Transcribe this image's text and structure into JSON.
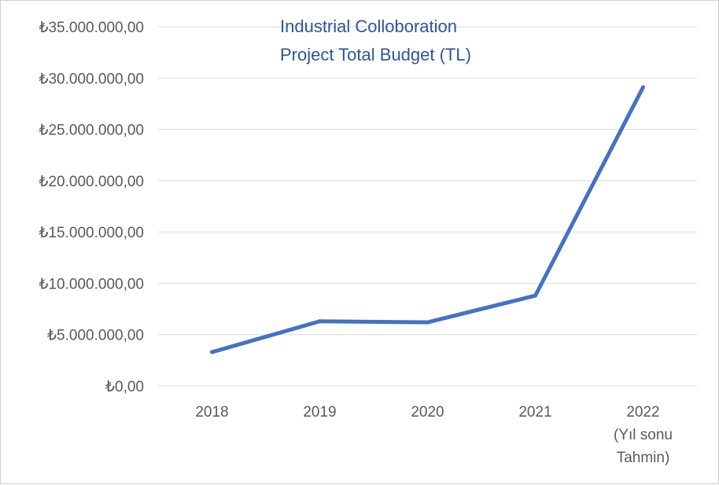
{
  "chart_data": {
    "type": "line",
    "title_lines": [
      "Industrial Colloboration",
      "Project Total Budget (TL)"
    ],
    "categories": [
      [
        "2018"
      ],
      [
        "2019"
      ],
      [
        "2020"
      ],
      [
        "2021"
      ],
      [
        "2022",
        "(Yıl sonu",
        "Tahmin)"
      ]
    ],
    "values": [
      3300000,
      6300000,
      6200000,
      8800000,
      29100000
    ],
    "y_tick_labels": [
      "₺0,00",
      "₺5.000.000,00",
      "₺10.000.000,00",
      "₺15.000.000,00",
      "₺20.000.000,00",
      "₺25.000.000,00",
      "₺30.000.000,00",
      "₺35.000.000,00"
    ],
    "ylim": [
      0,
      35000000
    ],
    "y_tick_step": 5000000,
    "grid": true,
    "legend": "none",
    "colors": {
      "line": "#4472c4",
      "grid": "#d9d9d9",
      "tick_text": "#595959",
      "title": "#2e5597"
    }
  }
}
